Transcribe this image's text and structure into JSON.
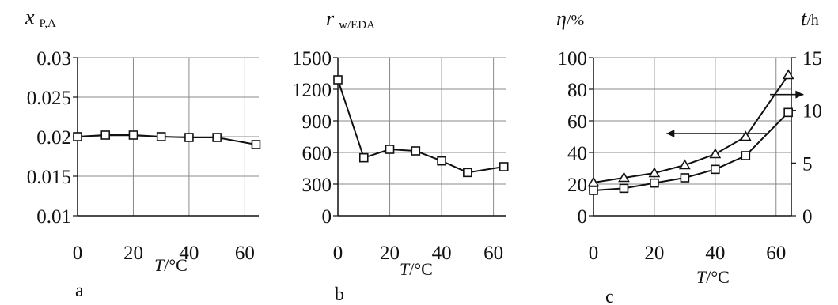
{
  "chart_data": [
    {
      "type": "line",
      "panel_label": "a",
      "ylabel_main": "x",
      "ylabel_sub": "P,A",
      "xlabel_italic": "T",
      "xlabel_unit": "/°C",
      "xlim": [
        0,
        65
      ],
      "ylim": [
        0.01,
        0.03
      ],
      "xticks": [
        0,
        20,
        40,
        60
      ],
      "yticks": [
        0.01,
        0.015,
        0.02,
        0.025,
        0.03
      ],
      "ytick_labels": [
        "0.01",
        "0.015",
        "0.02",
        "0.025",
        "0.03"
      ],
      "xgrid": [
        20,
        40,
        60
      ],
      "ygrid": [
        0.015,
        0.02,
        0.025,
        0.03
      ],
      "series": [
        {
          "marker": "square",
          "x": [
            0,
            10,
            20,
            30,
            40,
            50,
            64
          ],
          "y": [
            0.02,
            0.0202,
            0.0202,
            0.02,
            0.0199,
            0.0199,
            0.019
          ]
        }
      ]
    },
    {
      "type": "line",
      "panel_label": "b",
      "ylabel_main": "r",
      "ylabel_sub": "w/EDA",
      "xlabel_italic": "T",
      "xlabel_unit": "/°C",
      "xlim": [
        0,
        65
      ],
      "ylim": [
        0,
        1500
      ],
      "xticks": [
        0,
        20,
        40,
        60
      ],
      "yticks": [
        0,
        300,
        600,
        900,
        1200,
        1500
      ],
      "ytick_labels": [
        "0",
        "300",
        "600",
        "900",
        "1200",
        "1500"
      ],
      "xgrid": [
        20,
        40,
        60
      ],
      "ygrid": [
        300,
        600,
        900,
        1200,
        1500
      ],
      "series": [
        {
          "marker": "square",
          "x": [
            0,
            10,
            20,
            30,
            40,
            50,
            64
          ],
          "y": [
            1290,
            550,
            630,
            615,
            520,
            410,
            465
          ]
        }
      ]
    },
    {
      "type": "line",
      "panel_label": "c",
      "ylabel_main": "η",
      "ylabel_unit": "/%",
      "ylabel_right_main": "t",
      "ylabel_right_unit": "/h",
      "xlabel_italic": "T",
      "xlabel_unit": "/°C",
      "xlim": [
        0,
        65
      ],
      "ylim": [
        0,
        100
      ],
      "ylim_right": [
        0,
        15
      ],
      "xticks": [
        0,
        20,
        40,
        60
      ],
      "yticks": [
        0,
        20,
        40,
        60,
        80,
        100
      ],
      "ytick_labels": [
        "0",
        "20",
        "40",
        "60",
        "80",
        "100"
      ],
      "yticks_right": [
        0,
        5,
        10,
        15
      ],
      "ytick_right_labels": [
        "0",
        "5",
        "10",
        "15"
      ],
      "xgrid": [
        20,
        40,
        60
      ],
      "ygrid": [
        20,
        40,
        60,
        80,
        100
      ],
      "series": [
        {
          "marker": "triangle",
          "axis": "left",
          "x": [
            0,
            10,
            20,
            30,
            40,
            50,
            64
          ],
          "y": [
            21,
            24,
            27,
            32,
            39,
            50,
            89
          ]
        },
        {
          "marker": "square",
          "axis": "right",
          "x": [
            0,
            10,
            20,
            30,
            40,
            50,
            64
          ],
          "y": [
            2.4,
            2.6,
            3.1,
            3.6,
            4.4,
            5.7,
            9.8
          ]
        }
      ]
    }
  ]
}
